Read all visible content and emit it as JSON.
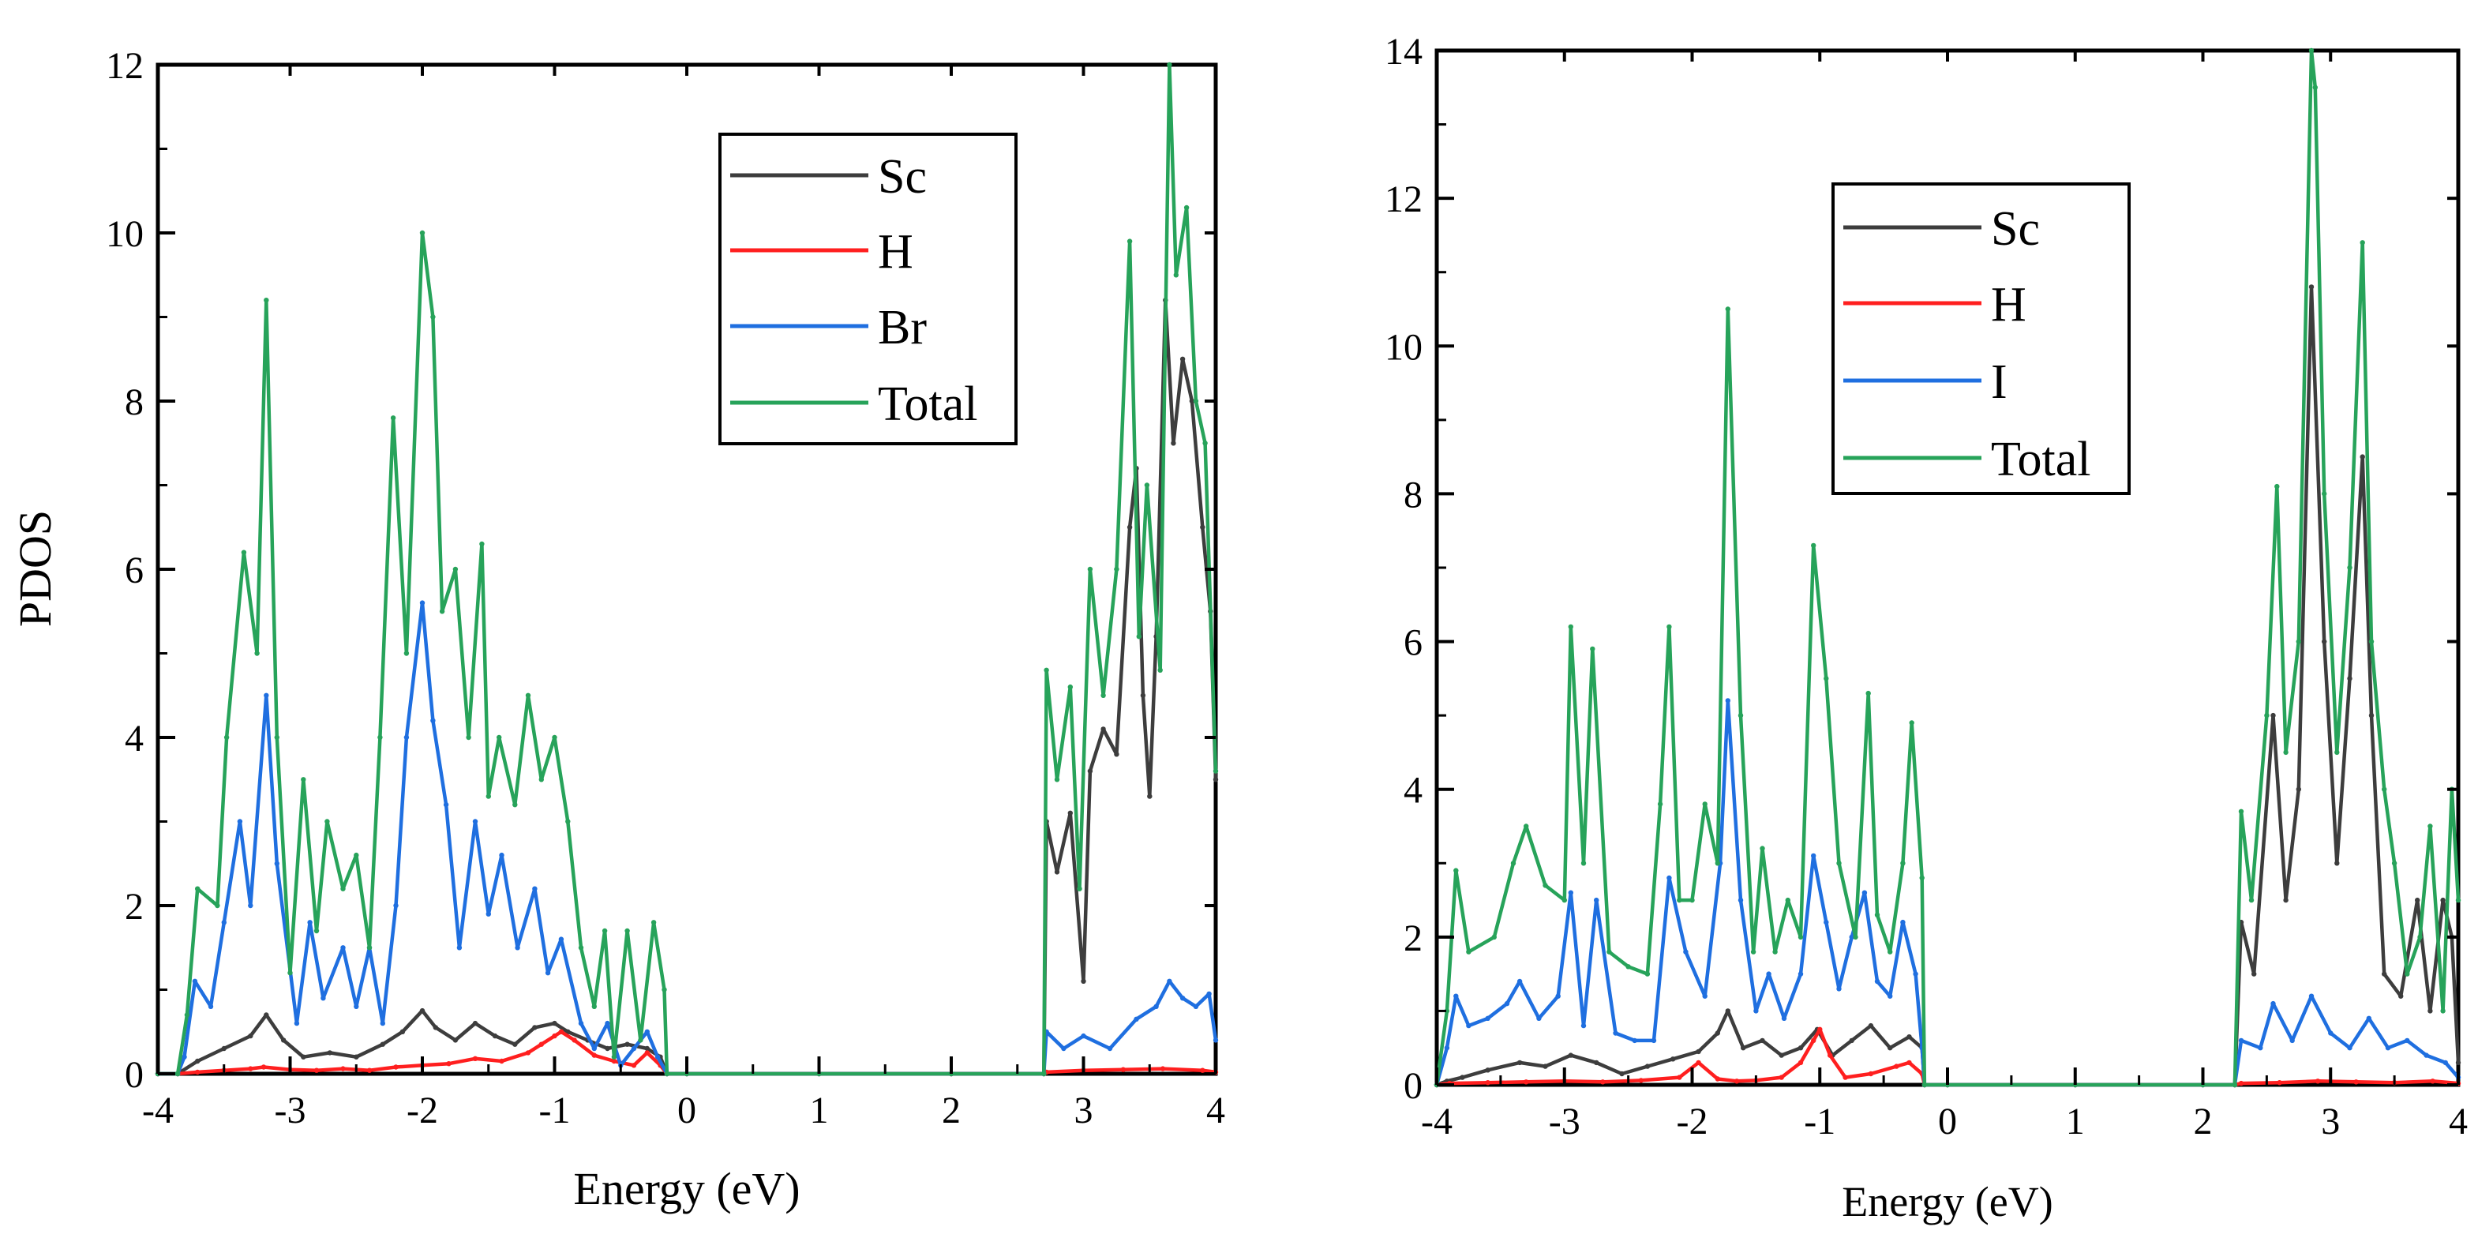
{
  "colors": {
    "Sc": "#3d3d3d",
    "H": "#ff1f1f",
    "Br": "#1f6fe0",
    "I": "#1f6fe0",
    "Total": "#27a35a"
  },
  "chart_data": [
    {
      "type": "line",
      "title": "",
      "xlabel": "Energy (eV)",
      "ylabel": "PDOS",
      "xlim": [
        -4,
        4
      ],
      "ylim": [
        0,
        12
      ],
      "xticks": [
        -4,
        -3,
        -2,
        -1,
        0,
        1,
        2,
        3,
        4
      ],
      "xtick_labels": [
        "-4",
        "-3",
        "-2",
        "-1",
        "0",
        "1",
        "2",
        "3",
        "4"
      ],
      "yticks": [
        0,
        2,
        4,
        6,
        8,
        10,
        12
      ],
      "ytick_labels": [
        "0",
        "2",
        "4",
        "6",
        "8",
        "10",
        "12"
      ],
      "legend": [
        "Sc",
        "H",
        "Br",
        "Total"
      ],
      "legend_position": "top-right",
      "series": [
        {
          "name": "Sc",
          "color_key": "Sc",
          "x": [
            -4,
            -3.85,
            -3.7,
            -3.5,
            -3.3,
            -3.18,
            -3.05,
            -2.9,
            -2.7,
            -2.5,
            -2.3,
            -2.15,
            -2.0,
            -1.9,
            -1.75,
            -1.6,
            -1.45,
            -1.3,
            -1.15,
            -1.0,
            -0.9,
            -0.75,
            -0.6,
            -0.45,
            -0.3,
            -0.2,
            -0.15,
            0,
            1,
            2,
            2.7,
            2.72,
            2.8,
            2.9,
            3.0,
            3.05,
            3.15,
            3.25,
            3.35,
            3.4,
            3.45,
            3.5,
            3.55,
            3.62,
            3.68,
            3.75,
            3.82,
            3.9,
            3.96,
            4.0
          ],
          "y": [
            0,
            0,
            0.15,
            0.3,
            0.45,
            0.7,
            0.4,
            0.2,
            0.25,
            0.2,
            0.35,
            0.5,
            0.75,
            0.55,
            0.4,
            0.6,
            0.45,
            0.35,
            0.55,
            0.6,
            0.5,
            0.4,
            0.3,
            0.35,
            0.3,
            0.2,
            0,
            0,
            0,
            0,
            0,
            3.0,
            2.4,
            3.1,
            1.1,
            3.6,
            4.1,
            3.8,
            6.5,
            7.2,
            4.5,
            3.3,
            5.2,
            9.2,
            7.5,
            8.5,
            8.0,
            6.5,
            5.5,
            3.5
          ]
        },
        {
          "name": "H",
          "color_key": "H",
          "x": [
            -4,
            -3.85,
            -3.7,
            -3.5,
            -3.3,
            -3.2,
            -3.0,
            -2.8,
            -2.6,
            -2.4,
            -2.2,
            -2.0,
            -1.8,
            -1.6,
            -1.4,
            -1.2,
            -1.1,
            -1.0,
            -0.95,
            -0.85,
            -0.7,
            -0.55,
            -0.4,
            -0.3,
            -0.2,
            -0.15,
            0,
            1,
            2,
            2.7,
            2.72,
            3.0,
            3.3,
            3.6,
            3.9,
            4.0
          ],
          "y": [
            0,
            0,
            0.02,
            0.04,
            0.06,
            0.08,
            0.05,
            0.04,
            0.06,
            0.04,
            0.08,
            0.1,
            0.12,
            0.18,
            0.15,
            0.25,
            0.35,
            0.45,
            0.5,
            0.4,
            0.22,
            0.15,
            0.1,
            0.25,
            0.1,
            0,
            0,
            0,
            0,
            0,
            0.02,
            0.04,
            0.05,
            0.06,
            0.04,
            0.02
          ]
        },
        {
          "name": "Br",
          "color_key": "Br",
          "x": [
            -4,
            -3.85,
            -3.8,
            -3.72,
            -3.6,
            -3.5,
            -3.38,
            -3.3,
            -3.18,
            -3.1,
            -2.95,
            -2.85,
            -2.75,
            -2.6,
            -2.5,
            -2.4,
            -2.3,
            -2.2,
            -2.12,
            -2.0,
            -1.92,
            -1.82,
            -1.72,
            -1.6,
            -1.5,
            -1.4,
            -1.28,
            -1.15,
            -1.05,
            -0.95,
            -0.8,
            -0.7,
            -0.6,
            -0.5,
            -0.4,
            -0.3,
            -0.22,
            -0.15,
            0,
            1,
            2,
            2.7,
            2.72,
            2.85,
            3.0,
            3.2,
            3.4,
            3.55,
            3.65,
            3.75,
            3.85,
            3.95,
            4.0
          ],
          "y": [
            0,
            0,
            0.2,
            1.1,
            0.8,
            1.8,
            3.0,
            2.0,
            4.5,
            2.5,
            0.6,
            1.8,
            0.9,
            1.5,
            0.8,
            1.5,
            0.6,
            2.0,
            4.0,
            5.6,
            4.2,
            3.2,
            1.5,
            3.0,
            1.9,
            2.6,
            1.5,
            2.2,
            1.2,
            1.6,
            0.6,
            0.3,
            0.6,
            0.1,
            0.3,
            0.5,
            0.2,
            0,
            0,
            0,
            0,
            0,
            0.5,
            0.3,
            0.45,
            0.3,
            0.65,
            0.8,
            1.1,
            0.9,
            0.8,
            0.95,
            0.4
          ]
        },
        {
          "name": "Total",
          "color_key": "Total",
          "x": [
            -4,
            -3.85,
            -3.78,
            -3.7,
            -3.55,
            -3.48,
            -3.35,
            -3.25,
            -3.18,
            -3.1,
            -3.0,
            -2.9,
            -2.8,
            -2.72,
            -2.6,
            -2.5,
            -2.4,
            -2.32,
            -2.22,
            -2.12,
            -2.0,
            -1.92,
            -1.85,
            -1.75,
            -1.65,
            -1.55,
            -1.5,
            -1.42,
            -1.3,
            -1.2,
            -1.1,
            -1.0,
            -0.9,
            -0.8,
            -0.7,
            -0.62,
            -0.55,
            -0.45,
            -0.35,
            -0.25,
            -0.17,
            -0.15,
            0,
            1,
            2,
            2.7,
            2.72,
            2.8,
            2.9,
            2.97,
            3.05,
            3.15,
            3.25,
            3.35,
            3.42,
            3.48,
            3.58,
            3.65,
            3.7,
            3.78,
            3.85,
            3.92,
            4.0
          ],
          "y": [
            0,
            0,
            0.7,
            2.2,
            2.0,
            4.0,
            6.2,
            5.0,
            9.2,
            4.0,
            1.2,
            3.5,
            1.7,
            3.0,
            2.2,
            2.6,
            1.5,
            4.0,
            7.8,
            5.0,
            10.0,
            9.0,
            5.5,
            6.0,
            4.0,
            6.3,
            3.3,
            4.0,
            3.2,
            4.5,
            3.5,
            4.0,
            3.0,
            1.5,
            0.8,
            1.7,
            0.2,
            1.7,
            0.4,
            1.8,
            1.0,
            0,
            0,
            0,
            0,
            0,
            4.8,
            3.5,
            4.6,
            2.2,
            6.0,
            4.5,
            6.0,
            9.9,
            5.2,
            7.0,
            4.8,
            12.0,
            9.5,
            10.3,
            8.0,
            7.5,
            3.6
          ]
        }
      ]
    },
    {
      "type": "line",
      "title": "",
      "xlabel": "Energy (eV)",
      "ylabel": "",
      "xlim": [
        -4,
        4
      ],
      "ylim": [
        0,
        14
      ],
      "xticks": [
        -4,
        -3,
        -2,
        -1,
        0,
        1,
        2,
        3,
        4
      ],
      "xtick_labels": [
        "-4",
        "-3",
        "-2",
        "-1",
        "0",
        "1",
        "2",
        "3",
        "4"
      ],
      "yticks": [
        0,
        2,
        4,
        6,
        8,
        10,
        12,
        14
      ],
      "ytick_labels": [
        "0",
        "2",
        "4",
        "6",
        "8",
        "10",
        "12",
        "14"
      ],
      "legend": [
        "Sc",
        "H",
        "I",
        "Total"
      ],
      "legend_position": "top-left",
      "series": [
        {
          "name": "Sc",
          "color_key": "Sc",
          "x": [
            -4,
            -3.92,
            -3.8,
            -3.6,
            -3.35,
            -3.15,
            -2.95,
            -2.75,
            -2.55,
            -2.35,
            -2.15,
            -1.95,
            -1.8,
            -1.72,
            -1.6,
            -1.45,
            -1.3,
            -1.15,
            -1.02,
            -0.9,
            -0.75,
            -0.6,
            -0.45,
            -0.3,
            -0.2,
            -0.18,
            0,
            1,
            2,
            2.25,
            2.3,
            2.4,
            2.55,
            2.65,
            2.75,
            2.85,
            2.95,
            3.05,
            3.15,
            3.25,
            3.32,
            3.42,
            3.55,
            3.68,
            3.78,
            3.88,
            3.95,
            4.0
          ],
          "y": [
            0,
            0.05,
            0.1,
            0.2,
            0.3,
            0.25,
            0.4,
            0.3,
            0.15,
            0.25,
            0.35,
            0.45,
            0.7,
            1.0,
            0.5,
            0.6,
            0.4,
            0.5,
            0.75,
            0.4,
            0.6,
            0.8,
            0.5,
            0.65,
            0.5,
            0,
            0,
            0,
            0,
            0,
            2.2,
            1.5,
            5.0,
            2.5,
            4.0,
            10.8,
            6.0,
            3.0,
            5.5,
            8.5,
            5.0,
            1.5,
            1.2,
            2.5,
            1.0,
            2.5,
            2.0,
            0.3
          ]
        },
        {
          "name": "H",
          "color_key": "H",
          "x": [
            -4,
            -3.9,
            -3.6,
            -3.3,
            -3.0,
            -2.7,
            -2.4,
            -2.1,
            -1.95,
            -1.8,
            -1.65,
            -1.5,
            -1.3,
            -1.15,
            -1.05,
            -1.0,
            -0.92,
            -0.8,
            -0.6,
            -0.4,
            -0.3,
            -0.2,
            -0.18,
            0,
            1,
            2,
            2.25,
            2.3,
            2.6,
            2.9,
            3.2,
            3.5,
            3.8,
            4.0
          ],
          "y": [
            0,
            0.02,
            0.03,
            0.04,
            0.05,
            0.04,
            0.06,
            0.1,
            0.3,
            0.08,
            0.05,
            0.06,
            0.1,
            0.3,
            0.6,
            0.75,
            0.4,
            0.1,
            0.15,
            0.25,
            0.3,
            0.15,
            0,
            0,
            0,
            0,
            0,
            0.02,
            0.03,
            0.05,
            0.04,
            0.03,
            0.05,
            0.02
          ]
        },
        {
          "name": "I",
          "color_key": "I",
          "x": [
            -4,
            -3.92,
            -3.85,
            -3.75,
            -3.6,
            -3.45,
            -3.35,
            -3.2,
            -3.05,
            -2.95,
            -2.85,
            -2.75,
            -2.6,
            -2.45,
            -2.3,
            -2.18,
            -2.05,
            -1.9,
            -1.78,
            -1.72,
            -1.62,
            -1.5,
            -1.4,
            -1.28,
            -1.15,
            -1.05,
            -0.95,
            -0.85,
            -0.75,
            -0.65,
            -0.55,
            -0.45,
            -0.35,
            -0.25,
            -0.2,
            -0.18,
            0,
            1,
            2,
            2.25,
            2.3,
            2.45,
            2.55,
            2.7,
            2.85,
            3.0,
            3.15,
            3.3,
            3.45,
            3.6,
            3.75,
            3.9,
            4.0
          ],
          "y": [
            0,
            0.5,
            1.2,
            0.8,
            0.9,
            1.1,
            1.4,
            0.9,
            1.2,
            2.6,
            0.8,
            2.5,
            0.7,
            0.6,
            0.6,
            2.8,
            1.8,
            1.2,
            3.0,
            5.2,
            2.5,
            1.0,
            1.5,
            0.9,
            1.5,
            3.1,
            2.2,
            1.3,
            2.0,
            2.6,
            1.4,
            1.2,
            2.2,
            1.5,
            0.5,
            0,
            0,
            0,
            0,
            0,
            0.6,
            0.5,
            1.1,
            0.6,
            1.2,
            0.7,
            0.5,
            0.9,
            0.5,
            0.6,
            0.4,
            0.3,
            0.1
          ]
        },
        {
          "name": "Total",
          "color_key": "Total",
          "x": [
            -4,
            -3.92,
            -3.85,
            -3.75,
            -3.55,
            -3.4,
            -3.3,
            -3.15,
            -3.0,
            -2.95,
            -2.85,
            -2.78,
            -2.65,
            -2.5,
            -2.35,
            -2.25,
            -2.18,
            -2.1,
            -2.0,
            -1.9,
            -1.8,
            -1.72,
            -1.62,
            -1.52,
            -1.45,
            -1.35,
            -1.25,
            -1.15,
            -1.05,
            -0.95,
            -0.85,
            -0.72,
            -0.62,
            -0.55,
            -0.45,
            -0.35,
            -0.28,
            -0.2,
            -0.18,
            0,
            1,
            2,
            2.25,
            2.3,
            2.38,
            2.5,
            2.58,
            2.65,
            2.75,
            2.85,
            2.88,
            2.95,
            3.05,
            3.15,
            3.25,
            3.32,
            3.42,
            3.5,
            3.6,
            3.7,
            3.78,
            3.88,
            3.95,
            4.0
          ],
          "y": [
            0,
            1.0,
            2.9,
            1.8,
            2.0,
            3.0,
            3.5,
            2.7,
            2.5,
            6.2,
            3.0,
            5.9,
            1.8,
            1.6,
            1.5,
            3.8,
            6.2,
            2.5,
            2.5,
            3.8,
            3.0,
            10.5,
            5.0,
            1.8,
            3.2,
            1.8,
            2.5,
            2.0,
            7.3,
            5.5,
            3.0,
            2.0,
            5.3,
            2.3,
            1.8,
            3.0,
            4.9,
            2.8,
            0,
            0,
            0,
            0,
            0,
            3.7,
            2.5,
            5.0,
            8.1,
            4.5,
            6.0,
            14.0,
            13.5,
            8.0,
            4.5,
            7.0,
            11.4,
            6.0,
            4.0,
            3.0,
            1.5,
            2.0,
            3.5,
            1.0,
            4.0,
            2.5
          ]
        }
      ]
    }
  ]
}
